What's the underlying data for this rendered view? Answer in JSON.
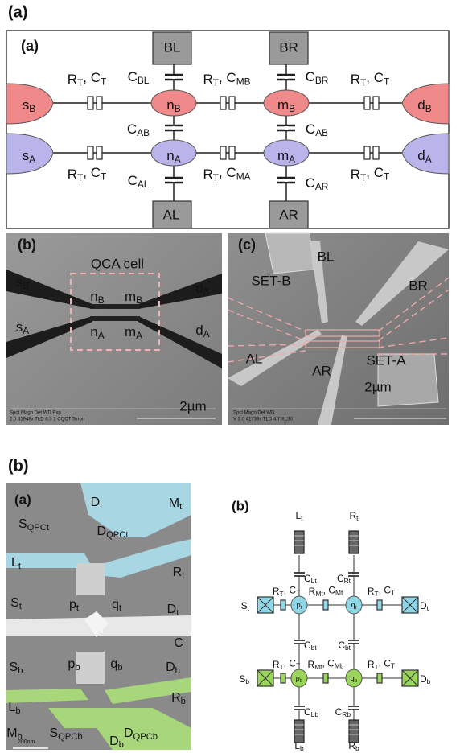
{
  "figure_label_top": "(a)",
  "panel_a": {
    "texts": [
      "(a)",
      "BL",
      "BR",
      "AL",
      "AR",
      [
        {
          "t": "s",
          "s": "B"
        }
      ],
      [
        {
          "t": "n",
          "s": "B"
        }
      ],
      [
        {
          "t": "m",
          "s": "B"
        }
      ],
      [
        {
          "t": "d",
          "s": "B"
        }
      ],
      [
        {
          "t": "s",
          "s": "A"
        }
      ],
      [
        {
          "t": "n",
          "s": "A"
        }
      ],
      [
        {
          "t": "m",
          "s": "A"
        }
      ],
      [
        {
          "t": "d",
          "s": "A"
        }
      ],
      [
        {
          "t": "R",
          "s": "T"
        },
        {
          "t": ", C",
          "s": "T"
        }
      ],
      [
        {
          "t": "C",
          "s": "BL"
        }
      ],
      [
        {
          "t": "R",
          "s": "T"
        },
        {
          "t": ", C",
          "s": "MB"
        }
      ],
      [
        {
          "t": "C",
          "s": "BR"
        }
      ],
      [
        {
          "t": "R",
          "s": "T"
        },
        {
          "t": ", C",
          "s": "T"
        }
      ],
      [
        {
          "t": "C",
          "s": "AB"
        }
      ],
      [
        {
          "t": "C",
          "s": "AB"
        }
      ],
      [
        {
          "t": "R",
          "s": "T"
        },
        {
          "t": ", C",
          "s": "T"
        }
      ],
      [
        {
          "t": "C",
          "s": "AL"
        }
      ],
      [
        {
          "t": "R",
          "s": "T"
        },
        {
          "t": ", C",
          "s": "MA"
        }
      ],
      [
        {
          "t": "C",
          "s": "AR"
        }
      ],
      [
        {
          "t": "R",
          "s": "T"
        },
        {
          "t": ", C",
          "s": "T"
        }
      ]
    ]
  },
  "panel_b": {
    "texts": [
      "(b)",
      "QCA cell",
      [
        {
          "t": "s",
          "s": "B"
        }
      ],
      [
        {
          "t": "n",
          "s": "B"
        }
      ],
      [
        {
          "t": "m",
          "s": "B"
        }
      ],
      [
        {
          "t": "d",
          "s": "B"
        }
      ],
      [
        {
          "t": "s",
          "s": "A"
        }
      ],
      [
        {
          "t": "n",
          "s": "A"
        }
      ],
      [
        {
          "t": "m",
          "s": "A"
        }
      ],
      [
        {
          "t": "d",
          "s": "A"
        }
      ],
      "2µm",
      "Spot Magn   Det  WD  Exp",
      "2.0  41948x  TLD  6.3  1     CQCT Sinon"
    ]
  },
  "panel_c": {
    "texts": [
      "(c)",
      "SET-B",
      "BL",
      "BR",
      "AL",
      "AR",
      "SET-A",
      "2µm",
      "Spct Magn   Det  WD",
      "V 3.0  41739x  TLD 4.7  XL30"
    ]
  },
  "figure_label_bottom": "(b)",
  "panel_d": {
    "texts": [
      "(a)",
      [
        {
          "t": "D",
          "s": "t"
        }
      ],
      [
        {
          "t": "M",
          "s": "t"
        }
      ],
      [
        {
          "t": "S",
          "s": "QPCt"
        }
      ],
      [
        {
          "t": "D",
          "s": "QPCt"
        }
      ],
      [
        {
          "t": "L",
          "s": "t"
        }
      ],
      [
        {
          "t": "R",
          "s": "t"
        }
      ],
      [
        {
          "t": "S",
          "s": "t"
        }
      ],
      [
        {
          "t": "p",
          "s": "t"
        }
      ],
      [
        {
          "t": "q",
          "s": "t"
        }
      ],
      [
        {
          "t": "D",
          "s": "t"
        }
      ],
      "C",
      [
        {
          "t": "S",
          "s": "b"
        }
      ],
      [
        {
          "t": "p",
          "s": "b"
        }
      ],
      [
        {
          "t": "q",
          "s": "b"
        }
      ],
      [
        {
          "t": "D",
          "s": "b"
        }
      ],
      [
        {
          "t": "L",
          "s": "b"
        }
      ],
      [
        {
          "t": "R",
          "s": "b"
        }
      ],
      [
        {
          "t": "M",
          "s": "b"
        }
      ],
      [
        {
          "t": "S",
          "s": "QPCb"
        }
      ],
      [
        {
          "t": "D",
          "s": "QPCb"
        }
      ],
      [
        {
          "t": "D",
          "s": "b"
        }
      ],
      "200nm"
    ]
  },
  "panel_e": {
    "texts": [
      "(b)",
      [
        {
          "t": "L",
          "s": "t"
        }
      ],
      [
        {
          "t": "R",
          "s": "t"
        }
      ],
      [
        {
          "t": "C",
          "s": "Lt"
        }
      ],
      [
        {
          "t": "C",
          "s": "Rt"
        }
      ],
      [
        {
          "t": "S",
          "s": "t"
        }
      ],
      [
        {
          "t": "R",
          "s": "T"
        },
        {
          "t": ", C",
          "s": "T"
        }
      ],
      [
        {
          "t": "p",
          "s": "t"
        }
      ],
      [
        {
          "t": "R",
          "s": "Mt"
        },
        {
          "t": ", C",
          "s": "Mt"
        }
      ],
      [
        {
          "t": "q",
          "s": "t"
        }
      ],
      [
        {
          "t": "R",
          "s": "T"
        },
        {
          "t": ", C",
          "s": "T"
        }
      ],
      [
        {
          "t": "D",
          "s": "t"
        }
      ],
      [
        {
          "t": "C",
          "s": "bt"
        }
      ],
      [
        {
          "t": "C",
          "s": "bt"
        }
      ],
      [
        {
          "t": "S",
          "s": "b"
        }
      ],
      [
        {
          "t": "R",
          "s": "T"
        },
        {
          "t": ", C",
          "s": "T"
        }
      ],
      [
        {
          "t": "p",
          "s": "b"
        }
      ],
      [
        {
          "t": "R",
          "s": "Mt"
        },
        {
          "t": ", C",
          "s": "Mb"
        }
      ],
      [
        {
          "t": "q",
          "s": "b"
        }
      ],
      [
        {
          "t": "R",
          "s": "T"
        },
        {
          "t": ", C",
          "s": "T"
        }
      ],
      [
        {
          "t": "D",
          "s": "b"
        }
      ],
      [
        {
          "t": "C",
          "s": "Lb"
        }
      ],
      [
        {
          "t": "C",
          "s": "Rb"
        }
      ],
      [
        {
          "t": "L",
          "s": "b"
        }
      ],
      [
        {
          "t": "R",
          "s": "b"
        }
      ]
    ]
  }
}
